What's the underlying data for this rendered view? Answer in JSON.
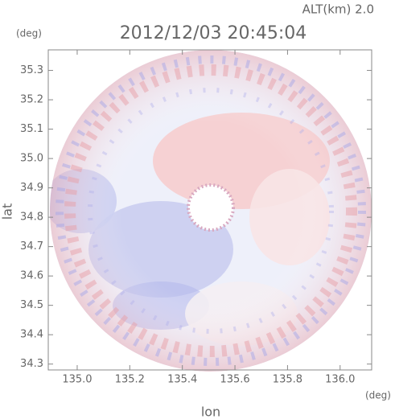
{
  "chart_data": {
    "type": "radar-image",
    "title": "2012/12/03 20:45:04",
    "altitude_label": "ALT(km) 2.0",
    "x_label": "lon",
    "y_label": "lat",
    "x_unit": "(deg)",
    "y_unit": "(deg)",
    "xlim": [
      134.89,
      136.12
    ],
    "ylim": [
      34.28,
      35.37
    ],
    "xticks": [
      {
        "value": 135.0,
        "label": "135.0"
      },
      {
        "value": 135.2,
        "label": "135.2"
      },
      {
        "value": 135.4,
        "label": "135.4"
      },
      {
        "value": 135.6,
        "label": "135.6"
      },
      {
        "value": 135.8,
        "label": "135.8"
      },
      {
        "value": 136.0,
        "label": "136.0"
      }
    ],
    "yticks": [
      {
        "value": 34.3,
        "label": "34.3"
      },
      {
        "value": 34.4,
        "label": "34.4"
      },
      {
        "value": 34.5,
        "label": "34.5"
      },
      {
        "value": 34.6,
        "label": "34.6"
      },
      {
        "value": 34.7,
        "label": "34.7"
      },
      {
        "value": 34.8,
        "label": "34.8"
      },
      {
        "value": 34.9,
        "label": "34.9"
      },
      {
        "value": 35.0,
        "label": "35.0"
      },
      {
        "value": 35.1,
        "label": "35.1"
      },
      {
        "value": 35.2,
        "label": "35.2"
      },
      {
        "value": 35.3,
        "label": "35.3"
      }
    ]
  }
}
